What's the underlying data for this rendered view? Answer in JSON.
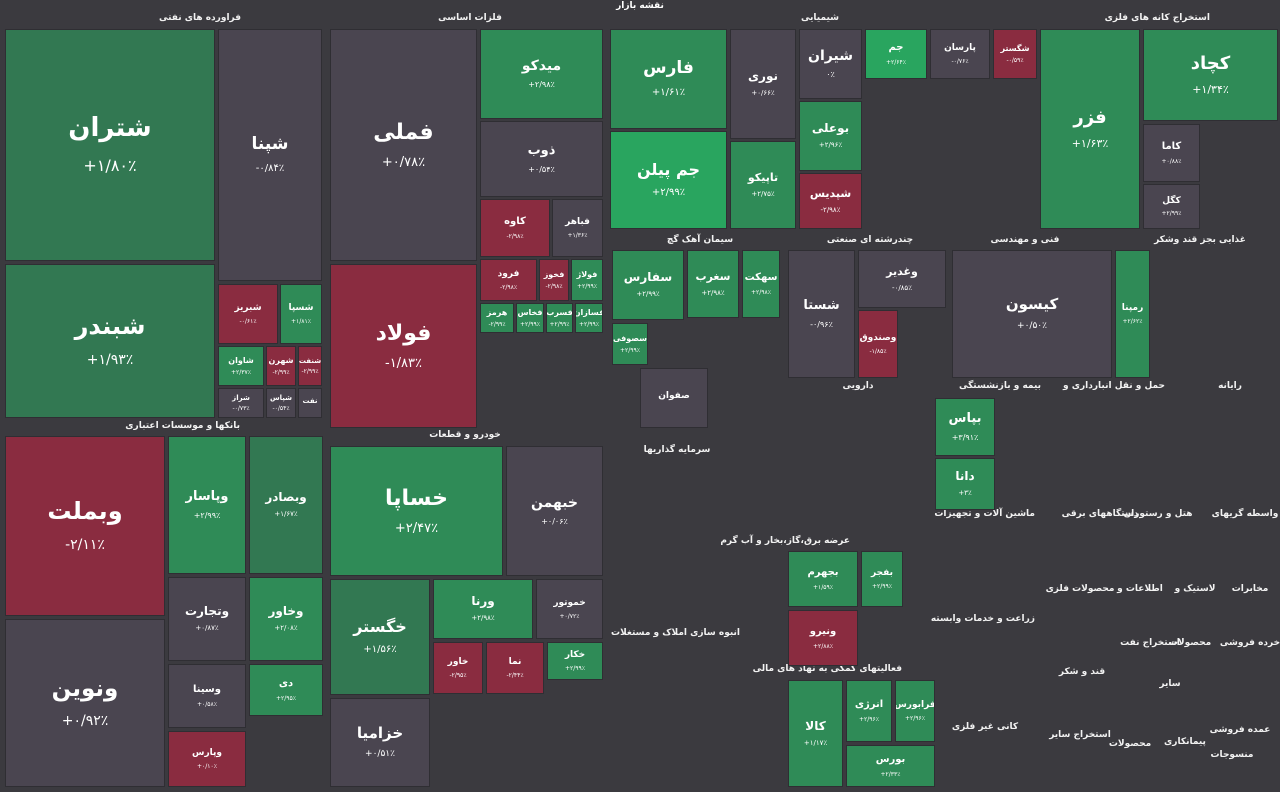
{
  "page_title": "نقشه بازار",
  "colors": {
    "positive": "#2f8b57",
    "strong_positive": "#29a55f",
    "negative": "#8a2c40",
    "neutral": "#4a4550",
    "background": "#3b3a3f"
  },
  "sectors": {
    "oil": "فراورده های نفتی",
    "metals": "فلزات اساسی",
    "chem": "شیمیایی",
    "mining": "استخراج کانه های فلزی",
    "banks": "بانکها و موسسات اعتباری",
    "auto": "خودرو و قطعات",
    "cement": "سیمان آهک گچ",
    "industrial": "چندرشته ای صنعتی",
    "engineering": "فنی و مهندسی",
    "food": "غذایی بجز قند وشکر",
    "pharma": "دارویی",
    "insurance": "بیمه و بازنشستگی",
    "transport": "حمل و نقل انبارداری و",
    "computer": "رایانه",
    "investment": "سرمایه گذاریها",
    "utilities": "عرضه برق،گاز،بخار و آب گرم",
    "machinery": "ماشین آلات و تجهیزات",
    "electrical": "دستگاههای برقی",
    "hotel": "هتل و رستوران",
    "brokers": "واسطه گریهای",
    "realestate": "انبوه سازی املاک و مستغلات",
    "financial": "فعالیتهای کمکی به نهاد های مالی",
    "metal_products": "محصولات فلزی",
    "comms": "اطلاعات و",
    "tire": "لاستیک و",
    "telecom": "مخابرات",
    "agri": "زراعت و خدمات وابسته",
    "oil_ext": "استخراج نفت",
    "products": "محصولات",
    "retail": "خرده فروشی",
    "sugar": "قند و شکر",
    "nonmetal": "کانی غیر فلزی",
    "other_mining": "استخراج سایر",
    "vehicles": "سایر",
    "paper": "محصولات",
    "contractors": "پیمانکاری",
    "wholesale": "عمده فروشی",
    "textiles": "منسوجات"
  },
  "cells": {
    "shatran": {
      "symbol": "شتران",
      "change": "+۱/۸۰٪"
    },
    "shabandar": {
      "symbol": "شبندر",
      "change": "+۱/۹۳٪"
    },
    "shapna": {
      "symbol": "شپنا",
      "change": "-۰/۸۴٪"
    },
    "shebriz": {
      "symbol": "شبریز",
      "change": "-۰/۶۱٪"
    },
    "shesepa": {
      "symbol": "شسپا",
      "change": "+۱/۸۱٪"
    },
    "shavan": {
      "symbol": "شاوان",
      "change": "+۲/۳۷٪"
    },
    "shahran": {
      "symbol": "شهرن",
      "change": "-۲/۹۹٪"
    },
    "shenaft": {
      "symbol": "شنفت",
      "change": "-۲/۹۹٪"
    },
    "shiraz": {
      "symbol": "شراز",
      "change": "-۰/۷۳٪"
    },
    "shepas": {
      "symbol": "شپاس",
      "change": "-۰/۵۴٪"
    },
    "naft": {
      "symbol": "نفت",
      "change": ""
    },
    "famli": {
      "symbol": "فملی",
      "change": "+۰/۷۸٪"
    },
    "foolad": {
      "symbol": "فولاد",
      "change": "-۱/۸۳٪"
    },
    "midko": {
      "symbol": "میدکو",
      "change": "+۲/۹۸٪"
    },
    "zob": {
      "symbol": "ذوب",
      "change": "+۰/۵۴٪"
    },
    "kaveh": {
      "symbol": "کاوه",
      "change": "-۲/۹۸٪"
    },
    "fbaher": {
      "symbol": "فباهر",
      "change": "+۱/۳۶٪"
    },
    "farvard": {
      "symbol": "فرود",
      "change": "-۲/۹۸٪"
    },
    "fakhooz": {
      "symbol": "فخوز",
      "change": "-۲/۹۸٪"
    },
    "folaj": {
      "symbol": "فولاژ",
      "change": "+۲/۹۹٪"
    },
    "hormoz": {
      "symbol": "هرمز",
      "change": "-۲/۹۹٪"
    },
    "fakhas": {
      "symbol": "فخاس",
      "change": "+۲/۹۹٪"
    },
    "fasreb": {
      "symbol": "فسرب",
      "change": "+۲/۹۹٪"
    },
    "fesazan": {
      "symbol": "فسازان",
      "change": "+۲/۹۹٪"
    },
    "fars": {
      "symbol": "فارس",
      "change": "+۱/۶۱٪"
    },
    "nouri": {
      "symbol": "نوری",
      "change": "+۰/۶۶٪"
    },
    "jampilen": {
      "symbol": "جم پیلن",
      "change": "+۲/۹۹٪"
    },
    "tapiko": {
      "symbol": "تاپیکو",
      "change": "+۲/۷۵٪"
    },
    "shiran": {
      "symbol": "شیران",
      "change": "۰٪"
    },
    "jam": {
      "symbol": "جم",
      "change": "+۲/۶۴٪"
    },
    "parsan": {
      "symbol": "پارسان",
      "change": "-۰/۷۶٪"
    },
    "shegoster": {
      "symbol": "شگستر",
      "change": "-۰/۵۹٪"
    },
    "booali": {
      "symbol": "بوعلی",
      "change": "+۲/۹۶٪"
    },
    "shapdis": {
      "symbol": "شپدیس",
      "change": "-۲/۹۸٪"
    },
    "kachad": {
      "symbol": "کچاد",
      "change": "+۱/۳۴٪"
    },
    "fazar": {
      "symbol": "فزر",
      "change": "+۱/۶۳٪"
    },
    "kama": {
      "symbol": "کاما",
      "change": "+۰/۸۸٪"
    },
    "kegol": {
      "symbol": "کگل",
      "change": "+۲/۹۹٪"
    },
    "vmelat": {
      "symbol": "وبملت",
      "change": "-۲/۱۱٪"
    },
    "vanovin": {
      "symbol": "ونوین",
      "change": "+۰/۹۲٪"
    },
    "vpasar": {
      "symbol": "وپاسار",
      "change": "+۲/۹۹٪"
    },
    "vbsader": {
      "symbol": "وبصادر",
      "change": "+۱/۶۷٪"
    },
    "vtejarat": {
      "symbol": "وتجارت",
      "change": "+۰/۸۷٪"
    },
    "vkhavar": {
      "symbol": "وخاور",
      "change": "+۲/۰۸٪"
    },
    "vsina": {
      "symbol": "وسینا",
      "change": "+۰/۵۸٪"
    },
    "dey": {
      "symbol": "دی",
      "change": "+۲/۹۵٪"
    },
    "vpars": {
      "symbol": "وپارس",
      "change": "+۰/۱۰٪"
    },
    "khesapa": {
      "symbol": "خساپا",
      "change": "+۲/۴۷٪"
    },
    "khbahman": {
      "symbol": "خبهمن",
      "change": "+۰/۰۶٪"
    },
    "khegostar": {
      "symbol": "خگستر",
      "change": "+۱/۵۶٪"
    },
    "vorna": {
      "symbol": "ورنا",
      "change": "+۲/۹۸٪"
    },
    "khamotor": {
      "symbol": "خموتور",
      "change": "+۰/۷۲٪"
    },
    "khazamia": {
      "symbol": "خزامیا",
      "change": "+۰/۵۱٪"
    },
    "khavar": {
      "symbol": "خاور",
      "change": "-۲/۹۵٪"
    },
    "nama": {
      "symbol": "نما",
      "change": "-۲/۴۴٪"
    },
    "khakar": {
      "symbol": "خکار",
      "change": "+۲/۹۹٪"
    },
    "sofvan": {
      "symbol": "صفوان",
      "change": ""
    },
    "sfaars": {
      "symbol": "سفارس",
      "change": "+۲/۹۹٪"
    },
    "sahrab": {
      "symbol": "سغرب",
      "change": "+۲/۹۸٪"
    },
    "semkat": {
      "symbol": "سهکت",
      "change": "+۲/۹۸٪"
    },
    "sesofian": {
      "symbol": "سصوفی",
      "change": "+۲/۹۹٪"
    },
    "shasta": {
      "symbol": "شستا",
      "change": "-۰/۹۶٪"
    },
    "vghadir": {
      "symbol": "وغدیر",
      "change": "-۰/۸۵٪"
    },
    "vsandooq": {
      "symbol": "وصندوق",
      "change": "-۱/۸۵٪"
    },
    "kisun": {
      "symbol": "کیسون",
      "change": "+۰/۵۰٪"
    },
    "rampana": {
      "symbol": "رمپنا",
      "change": "+۲/۶۲٪"
    },
    "bapas": {
      "symbol": "بپاس",
      "change": "+۳/۹۱٪"
    },
    "dana": {
      "symbol": "دانا",
      "change": "+۳٪"
    },
    "kala": {
      "symbol": "کالا",
      "change": "+۱/۱۷٪"
    },
    "emerald": {
      "symbol": "انرژی",
      "change": "+۲/۹۶٪"
    },
    "farabourse": {
      "symbol": "فرابورس",
      "change": "+۲/۹۶٪"
    },
    "bourse": {
      "symbol": "بورس",
      "change": "+۲/۳۳٪"
    },
    "bjahrom": {
      "symbol": "بجهرم",
      "change": "+۱/۵۹٪"
    },
    "vniro": {
      "symbol": "ونیرو",
      "change": "+۲/۸۸٪"
    },
    "bafjar": {
      "symbol": "بفجر",
      "change": "+۲/۹۹٪"
    }
  }
}
